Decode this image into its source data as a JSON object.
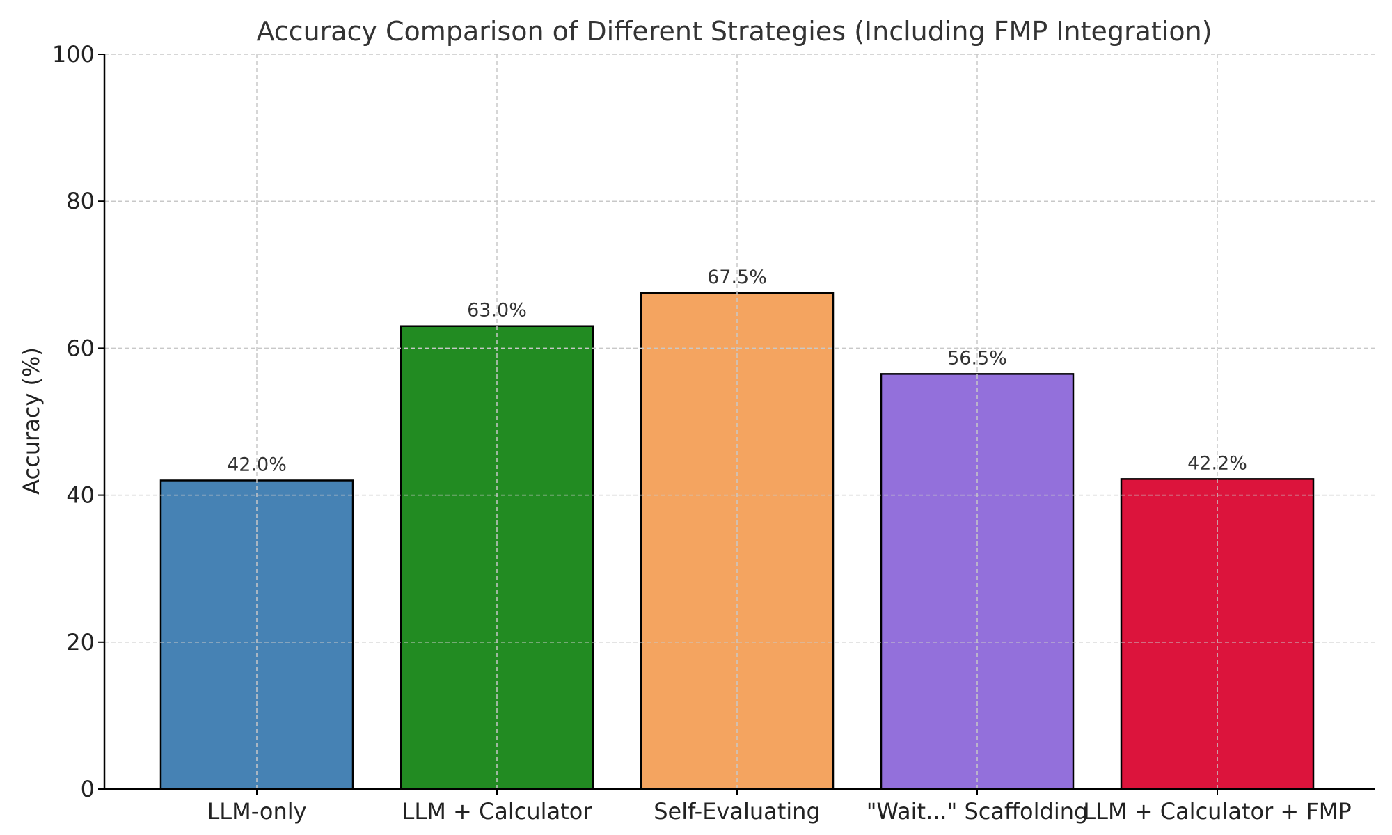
{
  "chart_data": {
    "type": "bar",
    "title": "Accuracy Comparison of Different Strategies (Including FMP Integration)",
    "xlabel": "",
    "ylabel": "Accuracy (%)",
    "ylim": [
      0,
      100
    ],
    "yticks": [
      0,
      20,
      40,
      60,
      80,
      100
    ],
    "grid": true,
    "categories": [
      "LLM-only",
      "LLM + Calculator",
      "Self-Evaluating",
      "\"Wait...\" Scaffolding",
      "LLM + Calculator + FMP"
    ],
    "values": [
      42.0,
      63.0,
      67.5,
      56.5,
      42.2
    ],
    "data_labels": [
      "42.0%",
      "63.0%",
      "67.5%",
      "56.5%",
      "42.2%"
    ],
    "colors": [
      "#4682b4",
      "#228b22",
      "#f4a460",
      "#9370db",
      "#dc143c"
    ]
  }
}
